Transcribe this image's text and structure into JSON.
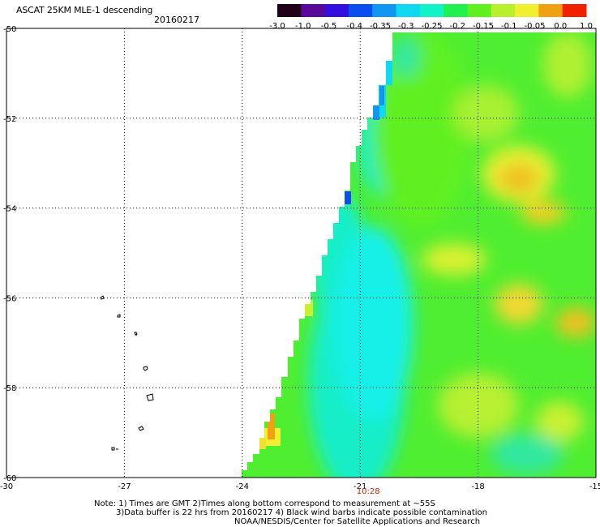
{
  "header": {
    "title": "ASCAT 25KM MLE-1 descending",
    "date": "20160217"
  },
  "colorbar": {
    "labels": [
      "-3.0",
      "-1.0",
      "-0.5",
      "-0.4",
      "-0.35",
      "-0.3",
      "-0.25",
      "-0.2",
      "-0.15",
      "-0.1",
      "-0.05",
      "0.0",
      "1.0"
    ],
    "colors": [
      "#200018",
      "#5a0898",
      "#3210e0",
      "#0a4ef0",
      "#1296f0",
      "#10d8f0",
      "#10f2c8",
      "#20f050",
      "#60f020",
      "#b8f030",
      "#f0f030",
      "#f0a010",
      "#f02000"
    ]
  },
  "axes": {
    "lon_ticks": [
      "-30",
      "-27",
      "-24",
      "-21",
      "-18",
      "-15"
    ],
    "lat_ticks": [
      "-50",
      "-52",
      "-54",
      "-56",
      "-58",
      "-60"
    ],
    "lon_range": [
      -30,
      -15
    ],
    "lat_range": [
      -60,
      -50
    ],
    "time_label": "10:28",
    "time_lon": -21,
    "grid": true
  },
  "notes": {
    "line1": "Note: 1) Times are GMT 2)Times along bottom correspond to measurement at ~55S",
    "line2": "3)Data buffer is 22 hrs from 20160217 4) Black wind barbs indicate possible contamination",
    "line3": "NOAA/NESDIS/Center for Satellite Applications and Research"
  }
}
